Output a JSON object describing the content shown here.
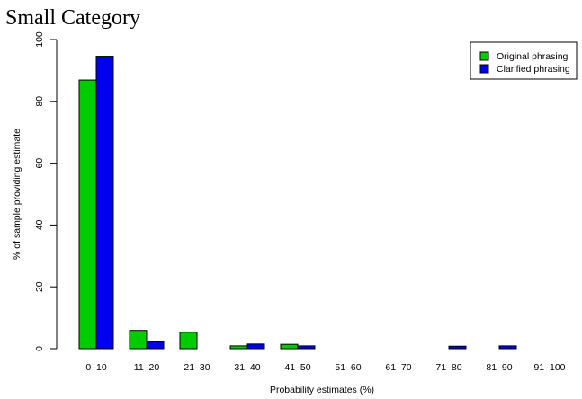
{
  "chart_data": {
    "type": "bar",
    "title": "Small Category",
    "xlabel": "Probability estimates (%)",
    "ylabel": "% of sample providing estimate",
    "ylim": [
      0,
      100
    ],
    "yticks": [
      0,
      20,
      40,
      60,
      80,
      100
    ],
    "categories": [
      "0–10",
      "11–20",
      "21–30",
      "31–40",
      "41–50",
      "51–60",
      "61–70",
      "71–80",
      "81–90",
      "91–100"
    ],
    "series": [
      {
        "name": "Original phrasing",
        "color": "#00cc00",
        "values": [
          86.9,
          5.9,
          5.3,
          0.9,
          1.4,
          0.0,
          0.0,
          0.0,
          0.0,
          0.0
        ]
      },
      {
        "name": "Clarified phrasing",
        "color": "#0000ee",
        "values": [
          94.6,
          2.2,
          0.0,
          1.5,
          0.9,
          0.0,
          0.0,
          0.8,
          0.9,
          0.0
        ]
      }
    ],
    "legend_position": "top-right",
    "grid": false
  }
}
